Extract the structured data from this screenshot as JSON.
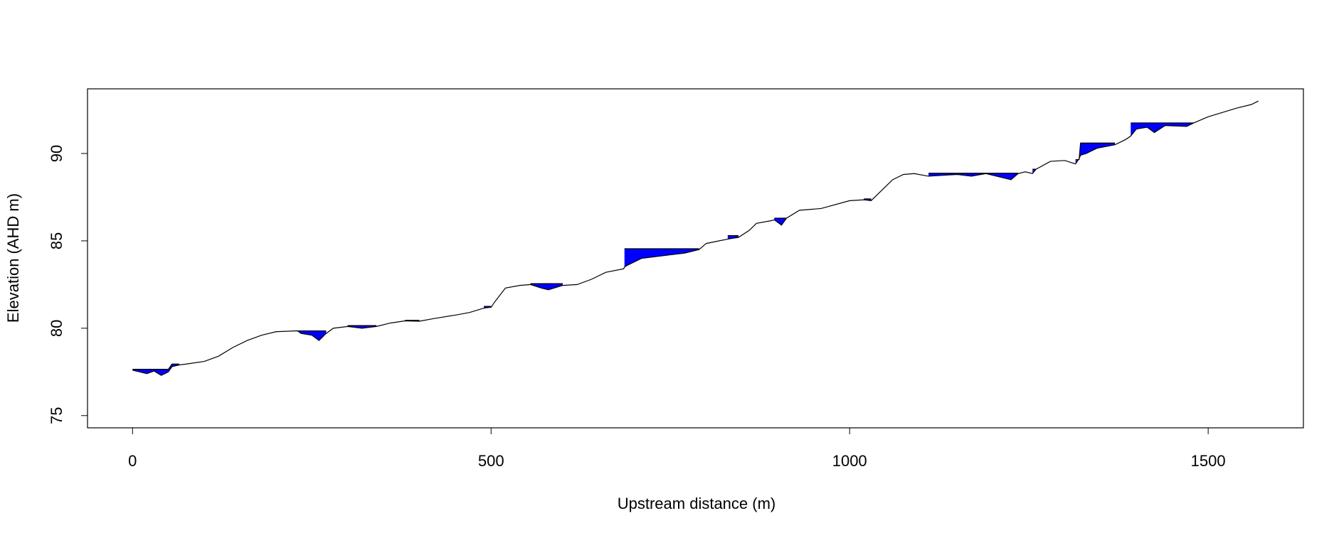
{
  "chart_data": {
    "type": "line",
    "xlabel": "Upstream distance (m)",
    "ylabel": "Elevation (AHD m)",
    "x": [
      0,
      10,
      20,
      30,
      40,
      50,
      55,
      65,
      75,
      100,
      120,
      140,
      160,
      180,
      200,
      230,
      235,
      250,
      260,
      270,
      280,
      300,
      320,
      340,
      360,
      380,
      400,
      420,
      450,
      470,
      490,
      500,
      505,
      520,
      540,
      555,
      570,
      580,
      600,
      620,
      640,
      660,
      685,
      686,
      690,
      700,
      710,
      730,
      750,
      770,
      790,
      800,
      830,
      845,
      860,
      870,
      890,
      895,
      905,
      912,
      930,
      960,
      1000,
      1020,
      1030,
      1045,
      1060,
      1075,
      1090,
      1110,
      1130,
      1150,
      1170,
      1190,
      1225,
      1235,
      1245,
      1255,
      1260,
      1280,
      1300,
      1315,
      1320,
      1322,
      1330,
      1345,
      1370,
      1385,
      1392,
      1400,
      1415,
      1425,
      1440,
      1470,
      1480,
      1500,
      1540,
      1560,
      1570
    ],
    "series": [
      {
        "color": "#000000",
        "values": [
          77.6,
          77.5,
          77.4,
          77.55,
          77.3,
          77.5,
          77.8,
          77.9,
          77.95,
          78.1,
          78.4,
          78.9,
          79.3,
          79.6,
          79.8,
          79.85,
          79.7,
          79.6,
          79.3,
          79.7,
          80.0,
          80.1,
          80.0,
          80.1,
          80.3,
          80.42,
          80.4,
          80.55,
          80.75,
          80.9,
          81.15,
          81.2,
          81.5,
          82.3,
          82.45,
          82.5,
          82.3,
          82.2,
          82.45,
          82.5,
          82.8,
          83.2,
          83.4,
          83.5,
          83.6,
          83.8,
          84.0,
          84.1,
          84.2,
          84.3,
          84.5,
          84.85,
          85.1,
          85.2,
          85.6,
          86.0,
          86.15,
          86.2,
          85.9,
          86.3,
          86.75,
          86.85,
          87.3,
          87.35,
          87.3,
          87.9,
          88.5,
          88.8,
          88.85,
          88.7,
          88.75,
          88.8,
          88.7,
          88.85,
          88.5,
          88.85,
          88.95,
          88.85,
          89.1,
          89.55,
          89.6,
          89.4,
          89.7,
          89.9,
          90.0,
          90.3,
          90.5,
          90.8,
          91.0,
          91.4,
          91.5,
          91.2,
          91.6,
          91.55,
          91.75,
          92.1,
          92.6,
          92.8,
          93.0
        ]
      },
      {
        "color": "#0000ff",
        "values": [
          77.65,
          77.65,
          77.65,
          77.65,
          77.65,
          77.65,
          77.95,
          77.95,
          null,
          null,
          null,
          null,
          null,
          null,
          null,
          79.85,
          79.85,
          79.85,
          79.85,
          79.85,
          null,
          80.15,
          80.15,
          80.15,
          null,
          80.45,
          80.45,
          null,
          80.8,
          null,
          81.25,
          81.25,
          null,
          null,
          null,
          82.55,
          82.55,
          82.55,
          82.55,
          null,
          null,
          null,
          null,
          84.55,
          84.55,
          84.55,
          84.55,
          84.55,
          84.55,
          84.55,
          84.55,
          null,
          85.3,
          85.3,
          null,
          null,
          null,
          86.3,
          86.3,
          86.3,
          null,
          null,
          null,
          87.4,
          87.4,
          null,
          null,
          null,
          null,
          88.87,
          88.87,
          88.87,
          88.87,
          88.87,
          88.87,
          88.87,
          null,
          89.1,
          89.1,
          null,
          null,
          89.65,
          89.65,
          90.6,
          90.6,
          90.6,
          90.6,
          null,
          91.75,
          91.75,
          91.75,
          91.75,
          91.75,
          91.75,
          91.75,
          null,
          null,
          null,
          null
        ]
      }
    ],
    "xlim": [
      -62.8,
      1632.8
    ],
    "ylim": [
      74.3,
      93.7
    ],
    "xticks": [
      0,
      500,
      1000,
      1500
    ],
    "yticks": [
      75,
      80,
      85,
      90
    ]
  }
}
